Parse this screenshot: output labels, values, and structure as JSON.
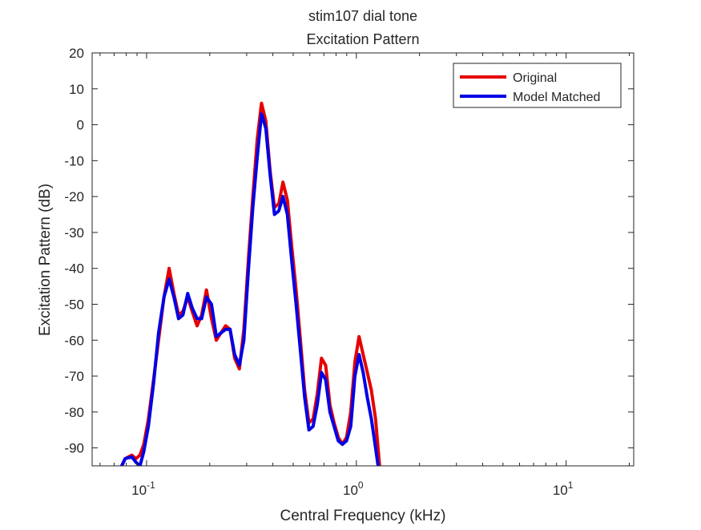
{
  "chart_data": {
    "type": "line",
    "title": "stim107 dial tone",
    "subtitle": "Excitation Pattern",
    "xlabel": "Central Frequency (kHz)",
    "ylabel": "Excitation Pattern (dB)",
    "xscale": "log",
    "xlim": [
      0.055,
      21
    ],
    "ylim": [
      -95,
      20
    ],
    "xticks": [
      0.1,
      1,
      10
    ],
    "xtick_labels": [
      {
        "base": "10",
        "exp": "-1"
      },
      {
        "base": "10",
        "exp": "0"
      },
      {
        "base": "10",
        "exp": "1"
      }
    ],
    "yticks": [
      20,
      10,
      0,
      -10,
      -20,
      -30,
      -40,
      -50,
      -60,
      -70,
      -80,
      -90
    ],
    "ytick_labels": [
      "20",
      "10",
      "0",
      "-10",
      "-20",
      "-30",
      "-40",
      "-50",
      "-60",
      "-70",
      "-80",
      "-90"
    ],
    "grid": false,
    "legend_position": "top-right",
    "series": [
      {
        "name": "Original",
        "color": "#e60000",
        "x": [
          0.072,
          0.079,
          0.085,
          0.089,
          0.093,
          0.097,
          0.102,
          0.108,
          0.114,
          0.121,
          0.128,
          0.135,
          0.142,
          0.149,
          0.157,
          0.165,
          0.174,
          0.183,
          0.193,
          0.204,
          0.215,
          0.226,
          0.238,
          0.25,
          0.263,
          0.277,
          0.291,
          0.306,
          0.321,
          0.337,
          0.353,
          0.37,
          0.388,
          0.407,
          0.427,
          0.447,
          0.469,
          0.492,
          0.516,
          0.541,
          0.567,
          0.594,
          0.622,
          0.651,
          0.682,
          0.714,
          0.748,
          0.783,
          0.82,
          0.858,
          0.898,
          0.94,
          0.984,
          1.03,
          1.078,
          1.128,
          1.18,
          1.235,
          1.29
        ],
        "y": [
          -98,
          -93,
          -92,
          -93,
          -92,
          -89,
          -82,
          -71,
          -60,
          -48,
          -40,
          -47,
          -53,
          -52,
          -48,
          -52,
          -56,
          -53,
          -46,
          -54,
          -60,
          -58,
          -56,
          -57,
          -65,
          -68,
          -57,
          -37,
          -20,
          -4,
          6,
          1,
          -13,
          -23,
          -22,
          -16,
          -21,
          -34,
          -46,
          -60,
          -74,
          -83,
          -82,
          -75,
          -65,
          -67,
          -78,
          -83,
          -87,
          -89,
          -87,
          -80,
          -66,
          -59,
          -64,
          -69,
          -74,
          -82,
          -95
        ]
      },
      {
        "name": "Model Matched",
        "color": "#0000e6",
        "x": [
          0.072,
          0.079,
          0.085,
          0.089,
          0.093,
          0.097,
          0.102,
          0.108,
          0.114,
          0.121,
          0.128,
          0.135,
          0.142,
          0.149,
          0.157,
          0.165,
          0.174,
          0.183,
          0.193,
          0.204,
          0.215,
          0.226,
          0.238,
          0.25,
          0.263,
          0.277,
          0.291,
          0.306,
          0.321,
          0.337,
          0.353,
          0.37,
          0.388,
          0.407,
          0.427,
          0.447,
          0.469,
          0.492,
          0.516,
          0.541,
          0.567,
          0.594,
          0.622,
          0.651,
          0.682,
          0.714,
          0.748,
          0.783,
          0.82,
          0.858,
          0.898,
          0.94,
          0.984,
          1.03,
          1.078,
          1.128,
          1.18,
          1.235,
          1.29
        ],
        "y": [
          -98,
          -93,
          -92.5,
          -94,
          -95,
          -91,
          -84,
          -72,
          -58,
          -48,
          -43,
          -48,
          -54,
          -53,
          -47,
          -51,
          -54,
          -54,
          -48,
          -50,
          -59,
          -58,
          -57,
          -57,
          -64,
          -67,
          -60,
          -40,
          -23,
          -9,
          3,
          -1,
          -14,
          -25,
          -24,
          -20,
          -25,
          -38,
          -50,
          -63,
          -76,
          -85,
          -84,
          -78,
          -69,
          -71,
          -80,
          -84,
          -88,
          -89,
          -88,
          -84,
          -70,
          -64,
          -69,
          -76,
          -82,
          -90,
          -98
        ]
      }
    ]
  }
}
